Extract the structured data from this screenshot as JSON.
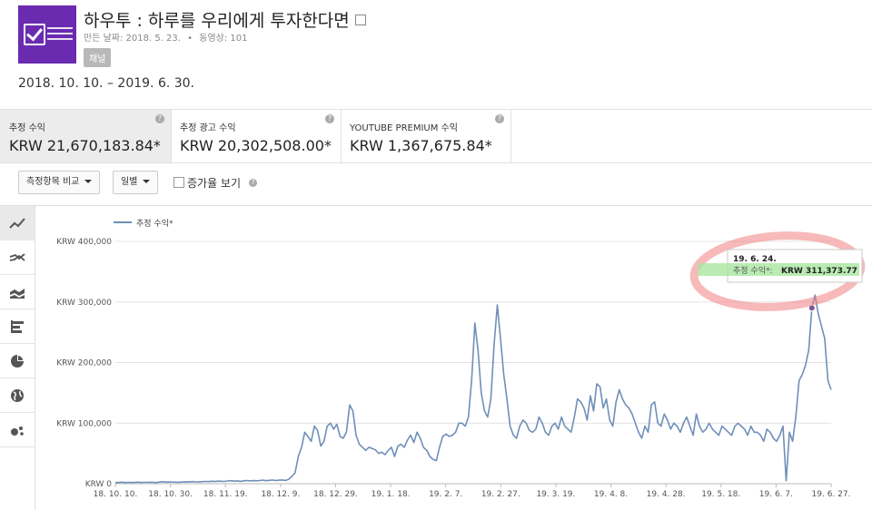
{
  "header": {
    "title": "하우투 : 하루를 우리에게 투자한다면",
    "created": "만든 날짜: 2018. 5. 23.",
    "separator": "•",
    "videos": "동영상: 101",
    "badge": "채널",
    "date_range": "2018. 10. 10. – 2019. 6. 30."
  },
  "metrics": [
    {
      "label": "추정 수익",
      "value": "KRW 21,670,183.84*",
      "help": "?"
    },
    {
      "label": "추정 광고 수익",
      "value": "KRW 20,302,508.00*",
      "help": "?"
    },
    {
      "label": "YOUTUBE PREMIUM 수익",
      "value": "KRW 1,367,675.84*",
      "help": "?"
    }
  ],
  "controls": {
    "compare_label": "측정항목 비교",
    "period_label": "일별",
    "growth_label": "증가율 보기",
    "growth_checked": false
  },
  "sidebar": {
    "items": [
      {
        "icon": "line-chart-icon",
        "active": true
      },
      {
        "icon": "multi-line-icon",
        "active": false
      },
      {
        "icon": "stacked-area-icon",
        "active": false
      },
      {
        "icon": "bar-chart-icon",
        "active": false
      },
      {
        "icon": "pie-chart-icon",
        "active": false
      },
      {
        "icon": "globe-icon",
        "active": false
      },
      {
        "icon": "bubble-chart-icon",
        "active": false
      }
    ]
  },
  "colors": {
    "line": "#6f8fb8",
    "highlight_green": "#a8e6a0",
    "annotation_red": "#f08080",
    "logo_purple": "#6a2bb0"
  },
  "tooltip": {
    "date": "19. 6. 24.",
    "label": "추정 수익*:",
    "value": "KRW 311,373.77"
  },
  "chart_data": {
    "type": "line",
    "legend": "추정 수익*",
    "legend_position": "top-left",
    "grid": true,
    "ylim": [
      0,
      400000
    ],
    "y_ticks": [
      "KRW 0",
      "KRW 100,000",
      "KRW 200,000",
      "KRW 300,000",
      "KRW 400,000"
    ],
    "x_ticks": [
      "18. 10. 10.",
      "18. 10. 30.",
      "18. 11. 19.",
      "18. 12. 9.",
      "18. 12. 29.",
      "19. 1. 18.",
      "19. 2. 7.",
      "19. 2. 27.",
      "19. 3. 19.",
      "19. 4. 8.",
      "19. 4. 28.",
      "19. 5. 18.",
      "19. 6. 7.",
      "19. 6. 27."
    ],
    "start_label": "18. 10. 10.",
    "series": [
      {
        "name": "추정 수익*",
        "values": [
          2000,
          2000,
          2500,
          1800,
          2200,
          2000,
          2100,
          2600,
          1900,
          2200,
          2300,
          2400,
          2100,
          2000,
          2800,
          3200,
          2500,
          3000,
          2700,
          2600,
          2400,
          2900,
          3100,
          2800,
          3400,
          3000,
          2900,
          3300,
          3800,
          3500,
          4000,
          3600,
          4200,
          4100,
          3800,
          4500,
          4900,
          4200,
          4700,
          3900,
          4800,
          5200,
          4600,
          5100,
          4800,
          5300,
          5800,
          5000,
          5600,
          6000,
          5200,
          5800,
          6100,
          5400,
          7200,
          12000,
          18000,
          45000,
          60000,
          85000,
          78000,
          70000,
          95000,
          88000,
          62000,
          70000,
          95000,
          100000,
          90000,
          98000,
          78000,
          75000,
          85000,
          130000,
          120000,
          80000,
          65000,
          60000,
          55000,
          60000,
          58000,
          56000,
          50000,
          52000,
          48000,
          55000,
          60000,
          45000,
          62000,
          65000,
          60000,
          72000,
          80000,
          68000,
          85000,
          75000,
          60000,
          55000,
          45000,
          40000,
          38000,
          60000,
          78000,
          82000,
          78000,
          80000,
          85000,
          100000,
          100000,
          95000,
          110000,
          170000,
          265000,
          220000,
          150000,
          120000,
          110000,
          140000,
          230000,
          295000,
          240000,
          180000,
          140000,
          95000,
          80000,
          75000,
          95000,
          105000,
          100000,
          88000,
          85000,
          90000,
          110000,
          100000,
          85000,
          80000,
          95000,
          100000,
          90000,
          110000,
          95000,
          90000,
          85000,
          110000,
          140000,
          135000,
          125000,
          105000,
          145000,
          120000,
          165000,
          160000,
          125000,
          140000,
          105000,
          95000,
          135000,
          155000,
          140000,
          130000,
          125000,
          115000,
          100000,
          85000,
          75000,
          95000,
          85000,
          130000,
          135000,
          100000,
          95000,
          115000,
          105000,
          90000,
          100000,
          95000,
          85000,
          100000,
          110000,
          95000,
          80000,
          115000,
          95000,
          85000,
          90000,
          100000,
          90000,
          85000,
          80000,
          95000,
          90000,
          85000,
          80000,
          95000,
          100000,
          95000,
          90000,
          80000,
          95000,
          85000,
          85000,
          80000,
          70000,
          90000,
          85000,
          75000,
          70000,
          80000,
          95000,
          5000,
          85000,
          70000,
          110000,
          170000,
          180000,
          195000,
          220000,
          290000,
          311374,
          280000,
          260000,
          240000,
          170000,
          155000
        ]
      }
    ],
    "highlight_index": 217
  }
}
